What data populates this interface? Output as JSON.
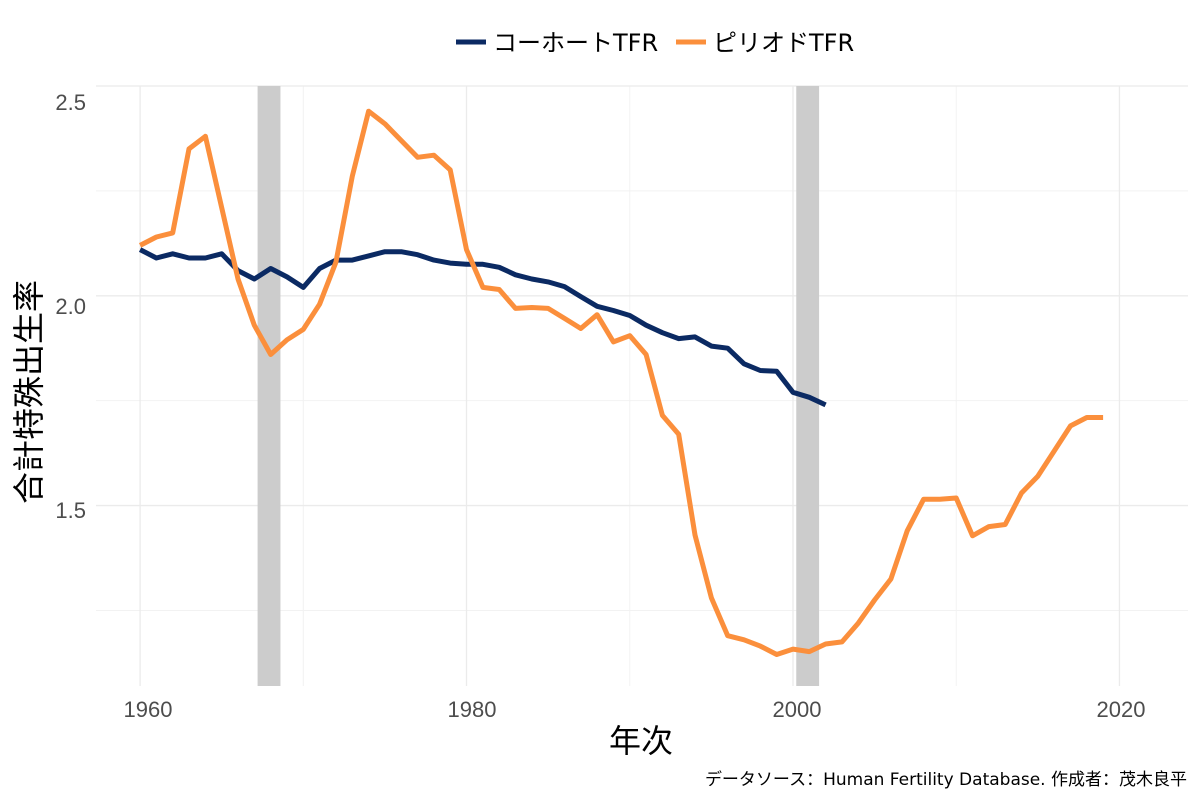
{
  "chart_data": {
    "type": "line",
    "title": "",
    "xlabel": "年次",
    "ylabel": "合計特殊出生率",
    "caption": "データソース：Human Fertility Database. 作成者：茂木良平",
    "xlim": [
      1957.3,
      2024.2
    ],
    "ylim": [
      1.07,
      2.5
    ],
    "x_ticks": [
      1960,
      1980,
      2000,
      2020
    ],
    "y_ticks": [
      1.5,
      2.0,
      2.5
    ],
    "x_tick_labels": [
      "1960",
      "1980",
      "2000",
      "2020"
    ],
    "y_tick_labels": [
      "1.5",
      "2.0",
      "2.5"
    ],
    "legend_position": "top",
    "shaded_periods": [
      {
        "start": 1967.2,
        "end": 1968.6
      },
      {
        "start": 2000.2,
        "end": 2001.6
      }
    ],
    "series": [
      {
        "name": "コーホートTFR",
        "color": "#0b2a63",
        "x": [
          1960,
          1961,
          1962,
          1963,
          1964,
          1965,
          1966,
          1967,
          1968,
          1969,
          1970,
          1971,
          1972,
          1973,
          1974,
          1975,
          1976,
          1977,
          1978,
          1979,
          1980,
          1981,
          1982,
          1983,
          1984,
          1985,
          1986,
          1987,
          1988,
          1989,
          1990,
          1991,
          1992,
          1993,
          1994,
          1995,
          1996,
          1997,
          1998,
          1999,
          2000,
          2001,
          2002
        ],
        "y": [
          2.11,
          2.09,
          2.1,
          2.09,
          2.09,
          2.1,
          2.06,
          2.04,
          2.065,
          2.045,
          2.02,
          2.065,
          2.085,
          2.085,
          2.095,
          2.105,
          2.105,
          2.098,
          2.085,
          2.078,
          2.075,
          2.075,
          2.068,
          2.05,
          2.04,
          2.033,
          2.022,
          1.998,
          1.975,
          1.965,
          1.953,
          1.93,
          1.912,
          1.898,
          1.902,
          1.88,
          1.875,
          1.838,
          1.822,
          1.82,
          1.77,
          1.758,
          1.74
        ]
      },
      {
        "name": "ピリオドTFR",
        "color": "#fb8f3c",
        "x": [
          1960,
          1961,
          1962,
          1963,
          1964,
          1965,
          1966,
          1967,
          1968,
          1969,
          1970,
          1971,
          1972,
          1973,
          1974,
          1975,
          1976,
          1977,
          1978,
          1979,
          1980,
          1981,
          1982,
          1983,
          1984,
          1985,
          1986,
          1987,
          1988,
          1989,
          1990,
          1991,
          1992,
          1993,
          1994,
          1995,
          1996,
          1997,
          1998,
          1999,
          2000,
          2001,
          2002,
          2003,
          2004,
          2005,
          2006,
          2007,
          2008,
          2009,
          2010,
          2011,
          2012,
          2013,
          2014,
          2015,
          2016,
          2017,
          2018,
          2019
        ],
        "y": [
          2.12,
          2.14,
          2.15,
          2.35,
          2.38,
          2.21,
          2.04,
          1.93,
          1.86,
          1.895,
          1.92,
          1.98,
          2.08,
          2.285,
          2.44,
          2.41,
          2.37,
          2.33,
          2.335,
          2.3,
          2.11,
          2.02,
          2.015,
          1.97,
          1.972,
          1.97,
          1.946,
          1.922,
          1.955,
          1.89,
          1.905,
          1.86,
          1.715,
          1.67,
          1.43,
          1.28,
          1.19,
          1.18,
          1.165,
          1.145,
          1.158,
          1.152,
          1.17,
          1.175,
          1.22,
          1.275,
          1.325,
          1.44,
          1.515,
          1.515,
          1.518,
          1.428,
          1.45,
          1.455,
          1.53,
          1.57,
          1.63,
          1.69,
          1.71,
          1.71
        ]
      }
    ]
  }
}
